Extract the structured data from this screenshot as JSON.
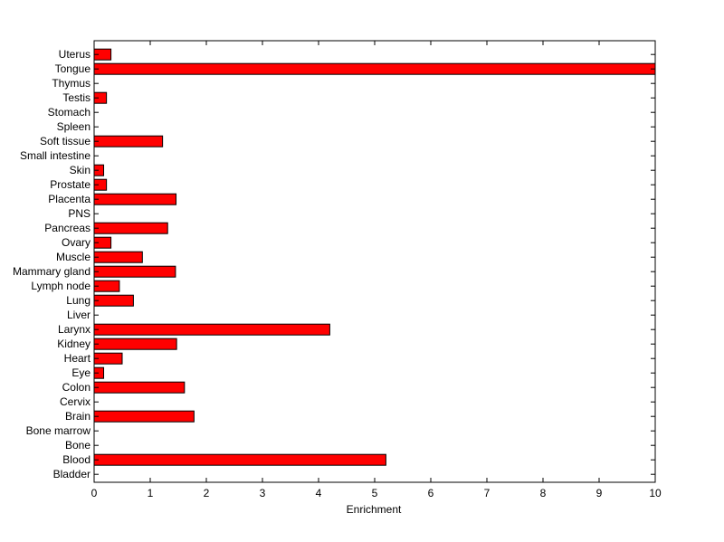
{
  "chart_data": {
    "type": "bar",
    "orientation": "horizontal",
    "title": "",
    "xlabel": "Enrichment",
    "ylabel": "",
    "xlim": [
      0,
      10
    ],
    "xticks": [
      0,
      1,
      2,
      3,
      4,
      5,
      6,
      7,
      8,
      9,
      10
    ],
    "grid": false,
    "legend": "none",
    "bar_color": "#ff0000",
    "bar_edge_color": "#000000",
    "categories": [
      "Uterus",
      "Tongue",
      "Thymus",
      "Testis",
      "Stomach",
      "Spleen",
      "Soft tissue",
      "Small intestine",
      "Skin",
      "Prostate",
      "Placenta",
      "PNS",
      "Pancreas",
      "Ovary",
      "Muscle",
      "Mammary gland",
      "Lymph node",
      "Lung",
      "Liver",
      "Larynx",
      "Kidney",
      "Heart",
      "Eye",
      "Colon",
      "Cervix",
      "Brain",
      "Bone marrow",
      "Bone",
      "Blood",
      "Bladder"
    ],
    "values": [
      0.3,
      10,
      0,
      0.22,
      0,
      0,
      1.22,
      0,
      0.17,
      0.22,
      1.46,
      0,
      1.31,
      0.3,
      0.86,
      1.45,
      0.45,
      0.7,
      0,
      4.2,
      1.47,
      0.5,
      0.17,
      1.61,
      0,
      1.78,
      0,
      0,
      5.2,
      0
    ]
  }
}
